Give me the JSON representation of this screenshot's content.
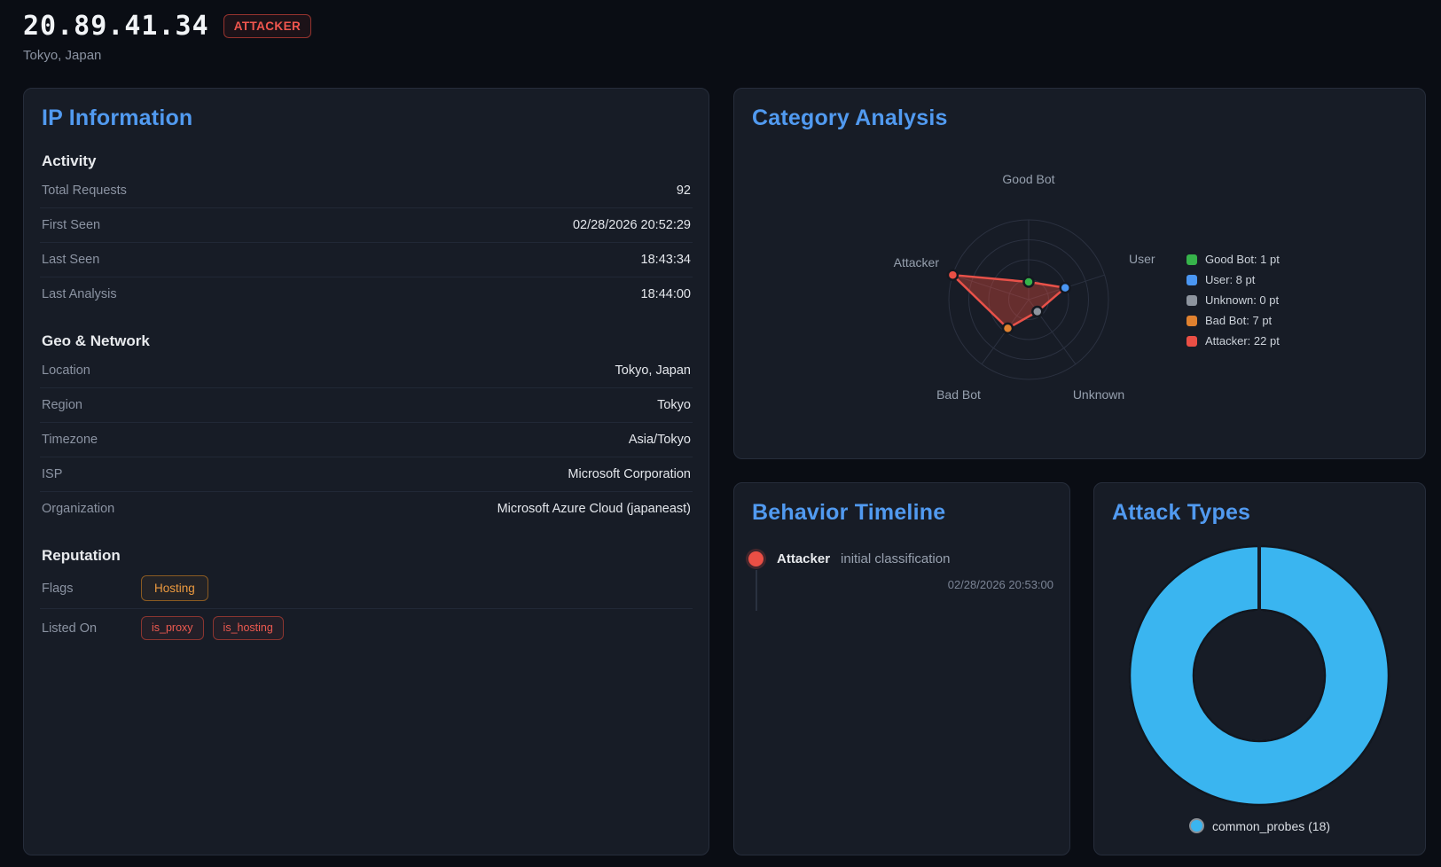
{
  "header": {
    "ip": "20.89.41.34",
    "badge": "ATTACKER",
    "location": "Tokyo, Japan"
  },
  "theme": {
    "page_background": "#0a0d14",
    "panel_background": "#171c26",
    "panel_border": "#262d3b",
    "accent_blue": "#519af0",
    "attacker_red": "#ea4f45",
    "warning_orange": "#ed9a3f"
  },
  "panels": {
    "ip_info": {
      "title": "IP Information",
      "sections": [
        {
          "heading": "Activity",
          "rows": [
            {
              "label": "Total Requests",
              "value": "92"
            },
            {
              "label": "First Seen",
              "value": "02/28/2026 20:52:29"
            },
            {
              "label": "Last Seen",
              "value": "18:43:34"
            },
            {
              "label": "Last Analysis",
              "value": "18:44:00"
            }
          ]
        },
        {
          "heading": "Geo & Network",
          "rows": [
            {
              "label": "Location",
              "value": "Tokyo, Japan"
            },
            {
              "label": "Region",
              "value": "Tokyo"
            },
            {
              "label": "Timezone",
              "value": "Asia/Tokyo"
            },
            {
              "label": "ISP",
              "value": "Microsoft Corporation"
            },
            {
              "label": "Organization",
              "value": "Microsoft Azure Cloud (japaneast)"
            }
          ]
        },
        {
          "heading": "Reputation",
          "rows": [
            {
              "label": "Flags",
              "badges": [
                {
                  "text": "Hosting",
                  "style": "orange"
                }
              ]
            },
            {
              "label": "Listed On",
              "badges": [
                {
                  "text": "is_proxy",
                  "style": "red"
                },
                {
                  "text": "is_hosting",
                  "style": "red"
                }
              ]
            }
          ]
        }
      ]
    },
    "category_analysis": {
      "title": "Category Analysis"
    },
    "behavior_timeline": {
      "title": "Behavior Timeline",
      "events": [
        {
          "category": "Attacker",
          "description": "initial classification",
          "timestamp": "02/28/2026 20:53:00",
          "color": "#ea4f45"
        }
      ]
    },
    "attack_types": {
      "title": "Attack Types"
    }
  },
  "chart_data": [
    {
      "type": "radar",
      "title": "Category Analysis",
      "categories": [
        "Good Bot",
        "User",
        "Unknown",
        "Bad Bot",
        "Attacker"
      ],
      "values": [
        1,
        8,
        0,
        7,
        22
      ],
      "unit": "pt",
      "point_colors": [
        "#36b34a",
        "#4a96f2",
        "#8d949e",
        "#e0812f",
        "#ea4f45"
      ],
      "fill_color": "rgba(231,76,60,0.38)",
      "stroke_color": "#e85149",
      "grid": true,
      "legend_position": "right",
      "legend": [
        "Good Bot: 1 pt",
        "User: 8 pt",
        "Unknown: 0 pt",
        "Bad Bot: 7 pt",
        "Attacker: 22 pt"
      ]
    },
    {
      "type": "pie",
      "donut": true,
      "title": "Attack Types",
      "categories": [
        "common_probes"
      ],
      "values": [
        18
      ],
      "slice_colors": [
        "#3ab5f0"
      ],
      "legend_position": "bottom",
      "legend": [
        "common_probes (18)"
      ]
    }
  ]
}
